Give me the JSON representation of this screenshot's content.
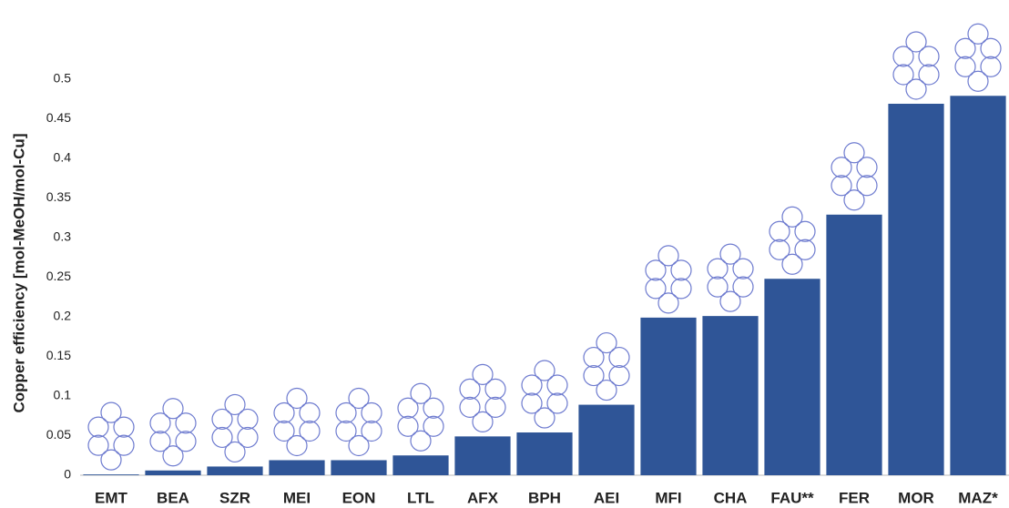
{
  "chart_data": {
    "type": "bar",
    "y_label": "Copper efficiency [mol-MeOH/mol-Cu]",
    "categories": [
      "EMT",
      "BEA",
      "SZR",
      "MEI",
      "EON",
      "LTL",
      "AFX",
      "BPH",
      "AEI",
      "MFI",
      "CHA",
      "FAU**",
      "FER",
      "MOR",
      "MAZ*"
    ],
    "values": [
      0.001,
      0.006,
      0.011,
      0.019,
      0.019,
      0.025,
      0.049,
      0.054,
      0.089,
      0.199,
      0.201,
      0.248,
      0.329,
      0.469,
      0.479
    ],
    "color": "#2f5597",
    "ylim": [
      0,
      0.6
    ],
    "yticks": [
      0,
      0.05,
      0.1,
      0.15,
      0.2,
      0.25,
      0.3,
      0.35,
      0.4,
      0.45,
      0.5
    ],
    "grid": false
  }
}
